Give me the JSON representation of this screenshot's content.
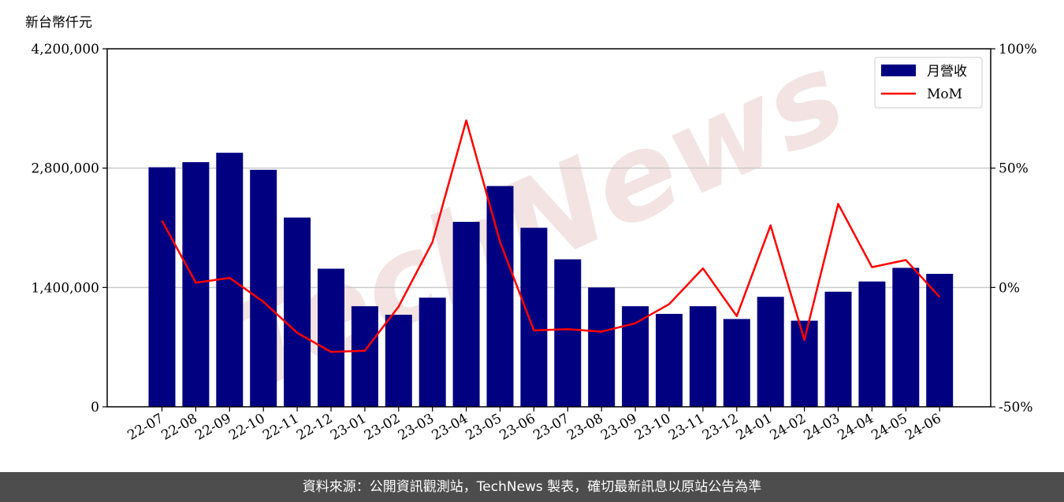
{
  "chart_data": {
    "type": "bar+line",
    "y_unit_label": "新台幣仟元",
    "categories": [
      "22-07",
      "22-08",
      "22-09",
      "22-10",
      "22-11",
      "22-12",
      "23-01",
      "23-02",
      "23-03",
      "23-04",
      "23-05",
      "23-06",
      "23-07",
      "23-08",
      "23-09",
      "23-10",
      "23-11",
      "23-12",
      "24-01",
      "24-02",
      "24-03",
      "24-04",
      "24-05",
      "24-06"
    ],
    "series": [
      {
        "name": "月營收",
        "kind": "bar",
        "axis": "left",
        "color": "#000080",
        "values": [
          2810000,
          2870000,
          2980000,
          2780000,
          2220000,
          1620000,
          1180000,
          1080000,
          1280000,
          2170000,
          2590000,
          2100000,
          1730000,
          1400000,
          1180000,
          1090000,
          1180000,
          1030000,
          1290000,
          1010000,
          1350000,
          1470000,
          1630000,
          1560000
        ]
      },
      {
        "name": "MoM",
        "kind": "line",
        "axis": "right",
        "color": "#ff0000",
        "values": [
          28,
          2,
          4,
          -6,
          -19,
          -27,
          -26.5,
          -8,
          19,
          70,
          19,
          -18,
          -17.5,
          -18.5,
          -15,
          -7,
          8,
          -12,
          26,
          -22,
          35,
          8.5,
          11.5,
          -4
        ]
      }
    ],
    "left_axis": {
      "ylim": [
        0,
        4200000
      ],
      "ticks": [
        0,
        1400000,
        2800000,
        4200000
      ],
      "tick_labels": [
        "0",
        "1,400,000",
        "2,800,000",
        "4,200,000"
      ]
    },
    "right_axis": {
      "ylim": [
        -50,
        100
      ],
      "ticks": [
        -50,
        0,
        50,
        100
      ],
      "tick_labels": [
        "-50%",
        "0%",
        "50%",
        "100%"
      ]
    },
    "grid": "horizontal",
    "legend_position": "top-right",
    "watermark": "TechNews"
  },
  "footer": {
    "text": "資料來源：公開資訊觀測站，TechNews 製表，確切最新訊息以原站公告為準"
  }
}
